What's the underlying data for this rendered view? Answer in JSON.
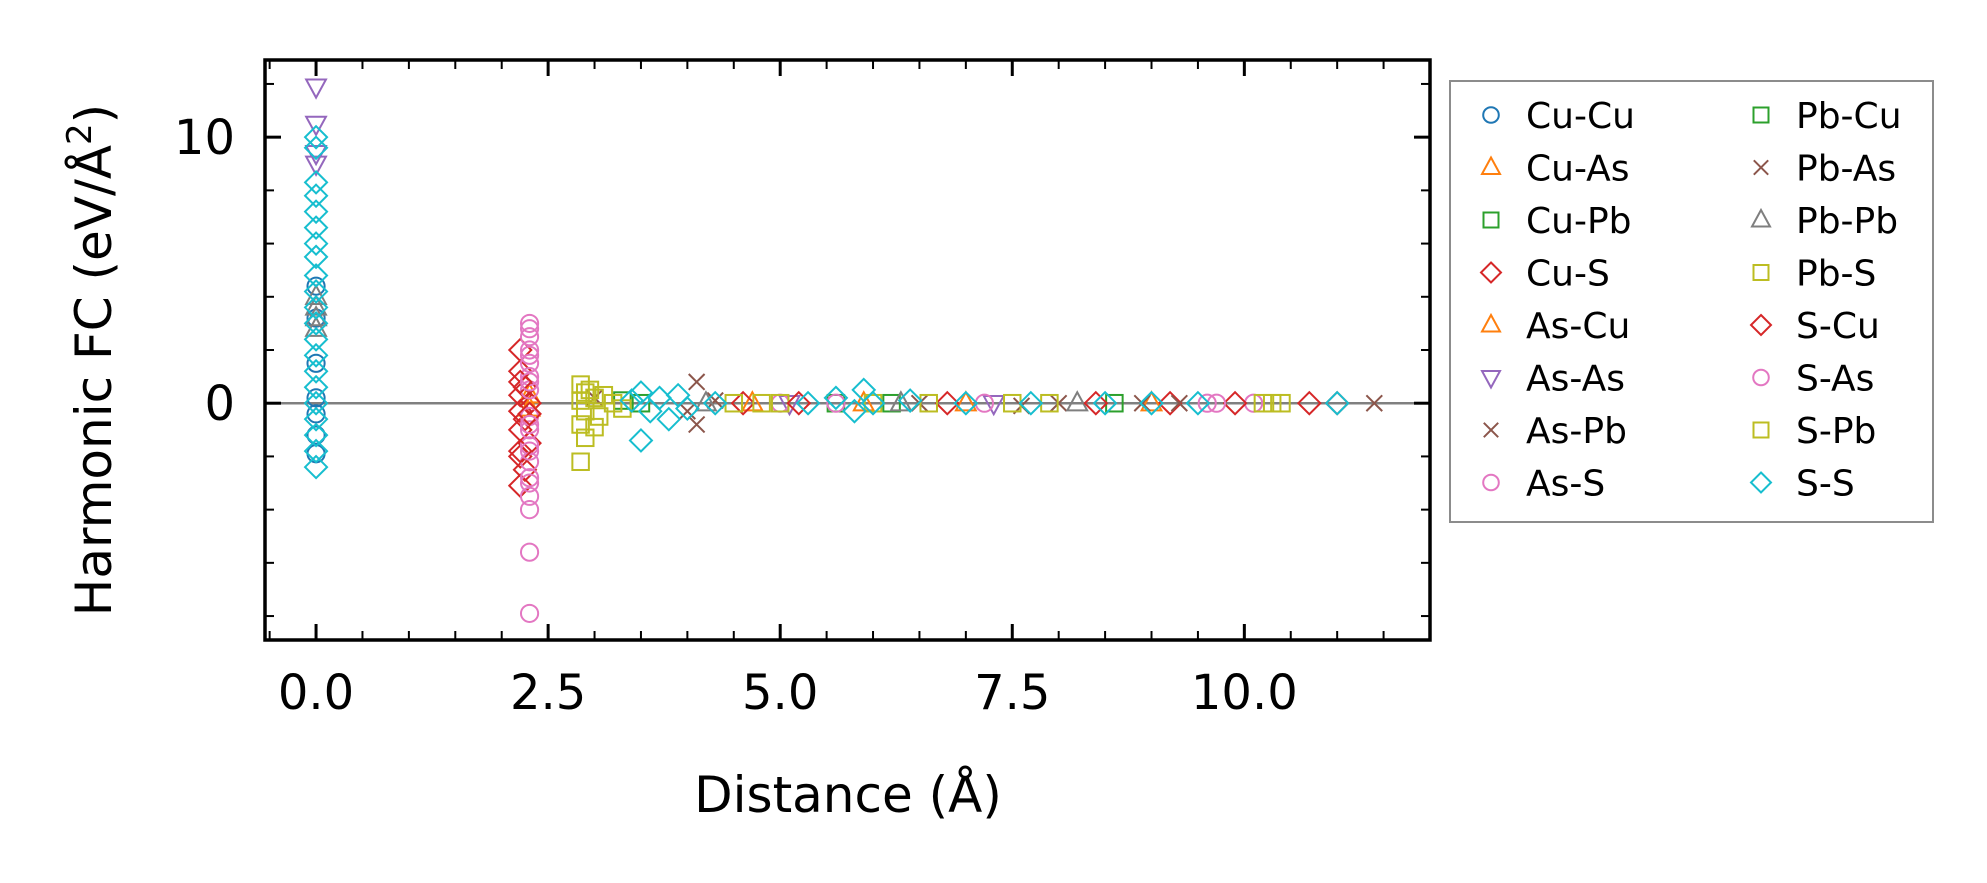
{
  "chart_data": {
    "type": "scatter",
    "xlabel": "Distance (Å)",
    "ylabel_main": "Harmonic FC (eV/Å",
    "ylabel_sup": "2",
    "ylabel_close": ")",
    "xlim": [
      -0.55,
      12.0
    ],
    "ylim": [
      -8.9,
      12.9
    ],
    "x_ticks": [
      0.0,
      2.5,
      5.0,
      7.5,
      10.0
    ],
    "x_tick_labels": [
      "0.0",
      "2.5",
      "5.0",
      "7.5",
      "10.0"
    ],
    "y_ticks": [
      0,
      10
    ],
    "y_tick_labels": [
      "0",
      "10"
    ],
    "reference_line_y": 0,
    "legend_position": "outside-right",
    "series": [
      {
        "name": "Cu-Cu",
        "color": "#1f77b4",
        "marker": "circle",
        "points": [
          [
            0,
            4.4
          ],
          [
            0,
            3.2
          ],
          [
            0,
            1.5
          ],
          [
            0,
            0.2
          ],
          [
            0,
            -0.4
          ],
          [
            0,
            -1.2
          ],
          [
            0,
            -1.9
          ]
        ]
      },
      {
        "name": "Cu-As",
        "color": "#ff7f0e",
        "marker": "triangle-up",
        "points": [
          [
            2.3,
            0.3
          ],
          [
            4.7,
            0.0
          ],
          [
            7.0,
            0.0
          ]
        ]
      },
      {
        "name": "Cu-Pb",
        "color": "#2ca02c",
        "marker": "square",
        "points": [
          [
            3.3,
            0.1
          ],
          [
            5.6,
            0.0
          ],
          [
            8.6,
            0.0
          ]
        ]
      },
      {
        "name": "Cu-S",
        "color": "#d62728",
        "marker": "diamond",
        "points": [
          [
            2.2,
            2.0
          ],
          [
            2.2,
            1.2
          ],
          [
            2.25,
            0.6
          ],
          [
            2.2,
            0.3
          ],
          [
            2.3,
            0.0
          ],
          [
            2.2,
            -0.3
          ],
          [
            2.25,
            -0.6
          ],
          [
            2.2,
            -1.0
          ],
          [
            2.3,
            -1.5
          ],
          [
            2.2,
            -2.0
          ],
          [
            2.25,
            -2.5
          ],
          [
            2.2,
            -3.1
          ],
          [
            4.6,
            0.0
          ],
          [
            6.8,
            0.0
          ],
          [
            9.2,
            0.0
          ],
          [
            10.7,
            0.0
          ]
        ]
      },
      {
        "name": "As-Cu",
        "color": "#ff7f0e",
        "marker": "triangle-up",
        "points": [
          [
            2.3,
            -0.2
          ],
          [
            5.9,
            0.0
          ],
          [
            9.0,
            0.0
          ]
        ]
      },
      {
        "name": "As-As",
        "color": "#9467bd",
        "marker": "triangle-down",
        "points": [
          [
            0,
            11.9
          ],
          [
            0,
            10.5
          ],
          [
            0,
            9.4
          ],
          [
            0,
            9.0
          ],
          [
            5.1,
            0.0
          ],
          [
            7.3,
            0.0
          ]
        ]
      },
      {
        "name": "As-Pb",
        "color": "#8c564b",
        "marker": "x",
        "points": [
          [
            3.0,
            0.2
          ],
          [
            4.1,
            0.8
          ],
          [
            4.1,
            -0.8
          ],
          [
            4.3,
            0.1
          ],
          [
            7.6,
            -0.1
          ],
          [
            8.0,
            0.0
          ],
          [
            9.3,
            0.0
          ],
          [
            11.4,
            0.0
          ]
        ]
      },
      {
        "name": "As-S",
        "color": "#e377c2",
        "marker": "circle",
        "points": [
          [
            2.3,
            3.0
          ],
          [
            2.3,
            2.5
          ],
          [
            2.3,
            2.0
          ],
          [
            2.3,
            1.5
          ],
          [
            2.3,
            1.0
          ],
          [
            2.3,
            0.5
          ],
          [
            2.3,
            -0.5
          ],
          [
            2.3,
            -1.0
          ],
          [
            2.3,
            -1.6
          ],
          [
            2.3,
            -2.2
          ],
          [
            2.3,
            -2.8
          ],
          [
            2.3,
            -3.5
          ],
          [
            2.3,
            -4.0
          ],
          [
            2.3,
            -5.6
          ],
          [
            2.3,
            -7.9
          ],
          [
            5.0,
            0.0
          ],
          [
            7.2,
            0.0
          ],
          [
            9.6,
            0.0
          ],
          [
            10.1,
            0.0
          ]
        ]
      },
      {
        "name": "Pb-Cu",
        "color": "#2ca02c",
        "marker": "square",
        "points": [
          [
            3.5,
            0.0
          ],
          [
            6.2,
            0.0
          ]
        ]
      },
      {
        "name": "Pb-As",
        "color": "#8c564b",
        "marker": "x",
        "points": [
          [
            4.0,
            -0.3
          ],
          [
            6.5,
            0.0
          ],
          [
            8.9,
            0.0
          ]
        ]
      },
      {
        "name": "Pb-Pb",
        "color": "#7f7f7f",
        "marker": "triangle-up",
        "points": [
          [
            0,
            4.0
          ],
          [
            0,
            3.6
          ],
          [
            0,
            3.2
          ],
          [
            0,
            2.8
          ],
          [
            4.2,
            0.0
          ],
          [
            6.3,
            0.0
          ],
          [
            8.2,
            0.0
          ]
        ]
      },
      {
        "name": "Pb-S",
        "color": "#bcbd22",
        "marker": "square",
        "points": [
          [
            2.85,
            0.7
          ],
          [
            2.9,
            0.4
          ],
          [
            2.85,
            0.1
          ],
          [
            2.9,
            -0.3
          ],
          [
            2.85,
            -0.8
          ],
          [
            2.9,
            -1.3
          ],
          [
            2.85,
            -2.2
          ],
          [
            3.0,
            0.2
          ],
          [
            3.05,
            -0.5
          ],
          [
            3.2,
            0.0
          ],
          [
            4.5,
            0.0
          ],
          [
            5.0,
            0.0
          ],
          [
            6.0,
            0.0
          ],
          [
            6.6,
            0.0
          ],
          [
            7.9,
            0.0
          ],
          [
            10.2,
            0.0
          ],
          [
            10.4,
            0.0
          ]
        ]
      },
      {
        "name": "S-Cu",
        "color": "#d62728",
        "marker": "diamond",
        "points": [
          [
            2.2,
            0.8
          ],
          [
            2.3,
            -0.4
          ],
          [
            2.2,
            -1.8
          ],
          [
            5.2,
            0.0
          ],
          [
            8.4,
            0.0
          ],
          [
            9.9,
            0.0
          ],
          [
            11.0,
            0.0
          ]
        ]
      },
      {
        "name": "S-As",
        "color": "#e377c2",
        "marker": "circle",
        "points": [
          [
            2.3,
            2.8
          ],
          [
            2.3,
            1.8
          ],
          [
            2.3,
            0.8
          ],
          [
            2.3,
            -0.8
          ],
          [
            2.3,
            -1.8
          ],
          [
            2.3,
            -3.0
          ],
          [
            5.6,
            0.0
          ],
          [
            9.7,
            0.0
          ]
        ]
      },
      {
        "name": "S-Pb",
        "color": "#bcbd22",
        "marker": "square",
        "points": [
          [
            2.95,
            0.5
          ],
          [
            3.0,
            -0.9
          ],
          [
            3.1,
            0.3
          ],
          [
            3.3,
            -0.2
          ],
          [
            4.8,
            0.0
          ],
          [
            7.5,
            0.0
          ],
          [
            10.3,
            0.0
          ]
        ]
      },
      {
        "name": "S-S",
        "color": "#17becf",
        "marker": "diamond",
        "points": [
          [
            0,
            10.0
          ],
          [
            0,
            9.6
          ],
          [
            0,
            8.3
          ],
          [
            0,
            7.8
          ],
          [
            0,
            7.2
          ],
          [
            0,
            6.6
          ],
          [
            0,
            6.0
          ],
          [
            0,
            5.5
          ],
          [
            0,
            4.8
          ],
          [
            0,
            4.2
          ],
          [
            0,
            3.6
          ],
          [
            0,
            3.0
          ],
          [
            0,
            2.4
          ],
          [
            0,
            1.8
          ],
          [
            0,
            1.2
          ],
          [
            0,
            0.6
          ],
          [
            0,
            0.0
          ],
          [
            0,
            -0.6
          ],
          [
            0,
            -1.2
          ],
          [
            0,
            -1.8
          ],
          [
            0,
            -2.4
          ],
          [
            3.5,
            0.4
          ],
          [
            3.6,
            -0.3
          ],
          [
            3.7,
            0.2
          ],
          [
            3.8,
            -0.6
          ],
          [
            3.5,
            -1.4
          ],
          [
            3.9,
            0.3
          ],
          [
            4.0,
            -0.2
          ],
          [
            3.4,
            0.1
          ],
          [
            4.3,
            0.0
          ],
          [
            5.3,
            0.0
          ],
          [
            5.6,
            0.2
          ],
          [
            5.8,
            -0.3
          ],
          [
            5.9,
            0.5
          ],
          [
            6.0,
            0.0
          ],
          [
            6.4,
            0.1
          ],
          [
            7.0,
            0.0
          ],
          [
            7.7,
            0.0
          ],
          [
            8.5,
            0.0
          ],
          [
            9.0,
            0.0
          ],
          [
            9.5,
            0.0
          ],
          [
            11.0,
            0.0
          ]
        ]
      }
    ]
  }
}
